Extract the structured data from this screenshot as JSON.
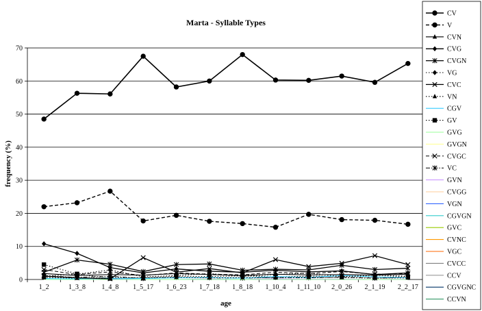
{
  "chart_data": {
    "type": "line",
    "title": "Marta - Syllable Types",
    "xlabel": "age",
    "ylabel": "frequency (%)",
    "ylim": [
      0,
      70
    ],
    "yticks": [
      0,
      10,
      20,
      30,
      40,
      50,
      60,
      70
    ],
    "grid": "horizontal",
    "legend_position": "right",
    "categories": [
      "1_2",
      "1_3_8",
      "1_4_8",
      "1_5_17",
      "1_6_23",
      "1_7_18",
      "1_8_18",
      "1_10_4",
      "1_11_10",
      "2_0_26",
      "2_1_19",
      "2_2_17"
    ],
    "series": [
      {
        "name": "CV",
        "color": "#000000",
        "dash": "solid",
        "marker": "circle",
        "width": 1.6,
        "values": [
          48.5,
          56.3,
          56.1,
          67.5,
          58.2,
          60.0,
          68.0,
          60.3,
          60.2,
          61.5,
          59.6,
          65.3
        ]
      },
      {
        "name": "V",
        "color": "#000000",
        "dash": "dashed",
        "marker": "circle",
        "width": 1.4,
        "values": [
          22.0,
          23.2,
          26.7,
          17.7,
          19.4,
          17.6,
          16.9,
          15.8,
          19.7,
          18.1,
          17.9,
          16.7
        ]
      },
      {
        "name": "CVN",
        "color": "#000000",
        "dash": "solid",
        "marker": "triangle",
        "width": 1.1,
        "values": [
          1.8,
          1.2,
          1.5,
          1.3,
          1.8,
          1.5,
          1.2,
          1.6,
          1.4,
          1.5,
          1.3,
          1.6
        ]
      },
      {
        "name": "CVG",
        "color": "#000000",
        "dash": "solid",
        "marker": "diamond",
        "width": 1.3,
        "values": [
          10.8,
          7.9,
          3.6,
          2.0,
          3.2,
          2.5,
          2.2,
          2.8,
          2.3,
          2.6,
          1.5,
          2.0
        ]
      },
      {
        "name": "CVGN",
        "color": "#000000",
        "dash": "solid",
        "marker": "star",
        "width": 1.3,
        "values": [
          2.2,
          5.9,
          4.6,
          2.4,
          4.5,
          4.7,
          2.8,
          3.1,
          2.9,
          4.3,
          3.0,
          3.4
        ]
      },
      {
        "name": "VG",
        "color": "#000000",
        "dash": "dotted",
        "marker": "diamond",
        "width": 1.1,
        "values": [
          1.0,
          1.6,
          2.9,
          0.8,
          1.2,
          1.8,
          1.0,
          1.5,
          1.9,
          0.9,
          1.3,
          1.0
        ]
      },
      {
        "name": "CVC",
        "color": "#000000",
        "dash": "solid",
        "marker": "x",
        "width": 1.3,
        "values": [
          1.0,
          0.5,
          0.2,
          6.6,
          2.2,
          3.3,
          2.0,
          6.0,
          3.9,
          4.9,
          7.2,
          4.5
        ]
      },
      {
        "name": "VN",
        "color": "#000000",
        "dash": "dotted",
        "marker": "triangle",
        "width": 1.1,
        "values": [
          0.6,
          0.4,
          0.5,
          0.6,
          0.7,
          0.5,
          0.6,
          0.5,
          0.7,
          0.6,
          0.4,
          0.5
        ]
      },
      {
        "name": "CGV",
        "color": "#33ccff",
        "dash": "solid",
        "marker": "none",
        "width": 1.1,
        "values": [
          0.3,
          0.2,
          0.4,
          0.3,
          0.5,
          0.6,
          0.4,
          0.9,
          0.6,
          1.2,
          0.8,
          0.5
        ]
      },
      {
        "name": "GV",
        "color": "#000000",
        "dash": "dotted",
        "marker": "square",
        "width": 1.1,
        "values": [
          4.5,
          1.7,
          0.3,
          0.4,
          1.0,
          0.9,
          1.1,
          0.8,
          1.0,
          1.0,
          0.7,
          0.9
        ]
      },
      {
        "name": "GVG",
        "color": "#99ff99",
        "dash": "solid",
        "marker": "none",
        "width": 1.1,
        "values": [
          0.0,
          0.0,
          0.0,
          0.0,
          0.0,
          0.0,
          0.0,
          0.0,
          0.0,
          0.0,
          0.0,
          0.0
        ]
      },
      {
        "name": "GVGN",
        "color": "#ffff99",
        "dash": "solid",
        "marker": "none",
        "width": 1.1,
        "values": [
          0.0,
          0.0,
          0.0,
          0.0,
          0.0,
          0.0,
          0.0,
          0.0,
          0.0,
          0.0,
          0.0,
          0.0
        ]
      },
      {
        "name": "CVGC",
        "color": "#000000",
        "dash": "dashed",
        "marker": "x",
        "width": 1.0,
        "values": [
          3.0,
          1.5,
          2.3,
          1.2,
          2.0,
          1.6,
          1.4,
          2.2,
          1.8,
          2.4,
          1.6,
          1.8
        ]
      },
      {
        "name": "VC",
        "color": "#000000",
        "dash": "dashdot",
        "marker": "star",
        "width": 1.0,
        "values": [
          1.2,
          0.6,
          1.0,
          0.3,
          0.6,
          0.5,
          0.4,
          0.6,
          0.5,
          0.7,
          0.4,
          0.6
        ]
      },
      {
        "name": "GVN",
        "color": "#cc99ff",
        "dash": "solid",
        "marker": "none",
        "width": 1.1,
        "values": [
          0.0,
          0.0,
          0.0,
          0.0,
          0.0,
          0.1,
          0.0,
          0.2,
          0.1,
          0.1,
          0.0,
          0.1
        ]
      },
      {
        "name": "CVGG",
        "color": "#ffcc99",
        "dash": "solid",
        "marker": "none",
        "width": 1.1,
        "values": [
          0.0,
          0.0,
          0.0,
          0.0,
          0.0,
          0.0,
          0.0,
          0.0,
          0.0,
          0.0,
          0.0,
          0.0
        ]
      },
      {
        "name": "VGN",
        "color": "#3366ff",
        "dash": "solid",
        "marker": "none",
        "width": 1.1,
        "values": [
          0.0,
          0.0,
          0.1,
          0.0,
          0.0,
          0.0,
          0.0,
          0.1,
          0.0,
          0.0,
          0.0,
          0.0
        ]
      },
      {
        "name": "CGVGN",
        "color": "#33cccc",
        "dash": "solid",
        "marker": "none",
        "width": 1.1,
        "values": [
          0.0,
          0.0,
          0.0,
          0.0,
          0.0,
          0.1,
          0.0,
          0.0,
          0.0,
          0.0,
          0.0,
          0.0
        ]
      },
      {
        "name": "GVC",
        "color": "#99cc00",
        "dash": "solid",
        "marker": "none",
        "width": 1.1,
        "values": [
          0.0,
          0.0,
          0.0,
          0.0,
          0.0,
          0.0,
          0.0,
          0.0,
          0.0,
          0.0,
          0.0,
          0.0
        ]
      },
      {
        "name": "CVNC",
        "color": "#ff9900",
        "dash": "solid",
        "marker": "none",
        "width": 1.1,
        "values": [
          0.0,
          0.0,
          0.0,
          0.0,
          0.0,
          0.0,
          0.0,
          0.0,
          0.0,
          0.0,
          0.0,
          0.0
        ]
      },
      {
        "name": "VGC",
        "color": "#ff6600",
        "dash": "solid",
        "marker": "none",
        "width": 1.1,
        "values": [
          0.0,
          0.0,
          0.0,
          0.0,
          0.0,
          0.0,
          0.0,
          0.0,
          0.0,
          0.0,
          0.0,
          0.0
        ]
      },
      {
        "name": "CVCC",
        "color": "#808080",
        "dash": "solid",
        "marker": "none",
        "width": 1.1,
        "values": [
          0.0,
          0.0,
          0.0,
          0.0,
          0.0,
          0.0,
          0.0,
          0.0,
          0.0,
          0.0,
          0.0,
          0.0
        ]
      },
      {
        "name": "CCV",
        "color": "#999999",
        "dash": "solid",
        "marker": "none",
        "width": 1.1,
        "values": [
          0.0,
          0.0,
          0.0,
          0.0,
          0.0,
          0.0,
          0.0,
          0.0,
          0.0,
          0.0,
          0.0,
          0.0
        ]
      },
      {
        "name": "CGVGNC",
        "color": "#003366",
        "dash": "solid",
        "marker": "none",
        "width": 1.1,
        "values": [
          0.0,
          0.0,
          0.0,
          0.0,
          0.0,
          0.0,
          0.0,
          0.0,
          0.0,
          0.0,
          0.0,
          0.0
        ]
      },
      {
        "name": "CCVN",
        "color": "#339966",
        "dash": "solid",
        "marker": "none",
        "width": 1.1,
        "values": [
          0.0,
          0.0,
          0.0,
          0.0,
          0.0,
          0.0,
          0.0,
          0.0,
          0.0,
          0.0,
          0.0,
          0.0
        ]
      }
    ]
  }
}
